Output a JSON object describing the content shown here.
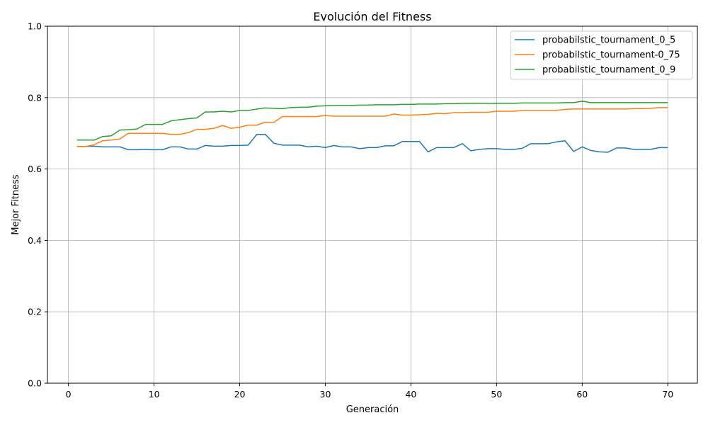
{
  "chart_data": {
    "type": "line",
    "title": "Evolución del Fitness",
    "xlabel": "Generación",
    "ylabel": "Mejor Fitness",
    "xlim": [
      -2.45,
      73.45
    ],
    "ylim": [
      0.0,
      1.0
    ],
    "xticks": [
      "0",
      "10",
      "20",
      "30",
      "40",
      "50",
      "60",
      "70"
    ],
    "yticks": [
      "0.0",
      "0.2",
      "0.4",
      "0.6",
      "0.8",
      "1.0"
    ],
    "grid": true,
    "legend_position": "top-right",
    "x": [
      1,
      2,
      3,
      4,
      5,
      6,
      7,
      8,
      9,
      10,
      11,
      12,
      13,
      14,
      15,
      16,
      17,
      18,
      19,
      20,
      21,
      22,
      23,
      24,
      25,
      26,
      27,
      28,
      29,
      30,
      31,
      32,
      33,
      34,
      35,
      36,
      37,
      38,
      39,
      40,
      41,
      42,
      43,
      44,
      45,
      46,
      47,
      48,
      49,
      50,
      51,
      52,
      53,
      54,
      55,
      56,
      57,
      58,
      59,
      60,
      61,
      62,
      63,
      64,
      65,
      66,
      67,
      68,
      69,
      70
    ],
    "series": [
      {
        "name": "probabilstic_tournament_0_5",
        "color": "#1f77b4",
        "values": [
          0.663,
          0.663,
          0.664,
          0.662,
          0.662,
          0.662,
          0.654,
          0.654,
          0.655,
          0.654,
          0.654,
          0.662,
          0.662,
          0.656,
          0.656,
          0.666,
          0.664,
          0.664,
          0.666,
          0.666,
          0.667,
          0.697,
          0.697,
          0.672,
          0.667,
          0.667,
          0.667,
          0.662,
          0.664,
          0.66,
          0.666,
          0.662,
          0.662,
          0.657,
          0.66,
          0.66,
          0.665,
          0.665,
          0.677,
          0.677,
          0.677,
          0.648,
          0.66,
          0.66,
          0.66,
          0.671,
          0.651,
          0.655,
          0.657,
          0.657,
          0.655,
          0.655,
          0.658,
          0.671,
          0.671,
          0.671,
          0.676,
          0.679,
          0.649,
          0.662,
          0.652,
          0.648,
          0.647,
          0.659,
          0.659,
          0.655,
          0.655,
          0.655,
          0.66,
          0.66
        ]
      },
      {
        "name": "probabilstic_tournament-0_75",
        "color": "#ff7f0e",
        "values": [
          0.663,
          0.663,
          0.668,
          0.679,
          0.681,
          0.684,
          0.7,
          0.7,
          0.7,
          0.7,
          0.7,
          0.697,
          0.697,
          0.702,
          0.711,
          0.711,
          0.714,
          0.722,
          0.714,
          0.717,
          0.723,
          0.723,
          0.731,
          0.731,
          0.747,
          0.747,
          0.747,
          0.747,
          0.747,
          0.75,
          0.748,
          0.748,
          0.748,
          0.748,
          0.748,
          0.748,
          0.748,
          0.754,
          0.751,
          0.751,
          0.752,
          0.753,
          0.756,
          0.755,
          0.758,
          0.758,
          0.759,
          0.759,
          0.759,
          0.762,
          0.762,
          0.762,
          0.764,
          0.764,
          0.764,
          0.764,
          0.764,
          0.767,
          0.768,
          0.768,
          0.768,
          0.768,
          0.768,
          0.768,
          0.768,
          0.769,
          0.769,
          0.77,
          0.772,
          0.772
        ]
      },
      {
        "name": "probabilstic_tournament_0_9",
        "color": "#2ca02c",
        "values": [
          0.681,
          0.681,
          0.681,
          0.691,
          0.693,
          0.709,
          0.71,
          0.712,
          0.725,
          0.725,
          0.725,
          0.735,
          0.738,
          0.741,
          0.743,
          0.76,
          0.76,
          0.762,
          0.76,
          0.764,
          0.764,
          0.768,
          0.771,
          0.77,
          0.769,
          0.772,
          0.773,
          0.773,
          0.776,
          0.777,
          0.778,
          0.778,
          0.778,
          0.779,
          0.779,
          0.78,
          0.78,
          0.78,
          0.781,
          0.781,
          0.782,
          0.782,
          0.782,
          0.783,
          0.783,
          0.784,
          0.784,
          0.784,
          0.784,
          0.784,
          0.784,
          0.784,
          0.785,
          0.785,
          0.785,
          0.785,
          0.785,
          0.786,
          0.786,
          0.79,
          0.786,
          0.786,
          0.786,
          0.786,
          0.786,
          0.786,
          0.786,
          0.786,
          0.786,
          0.786
        ]
      }
    ]
  }
}
